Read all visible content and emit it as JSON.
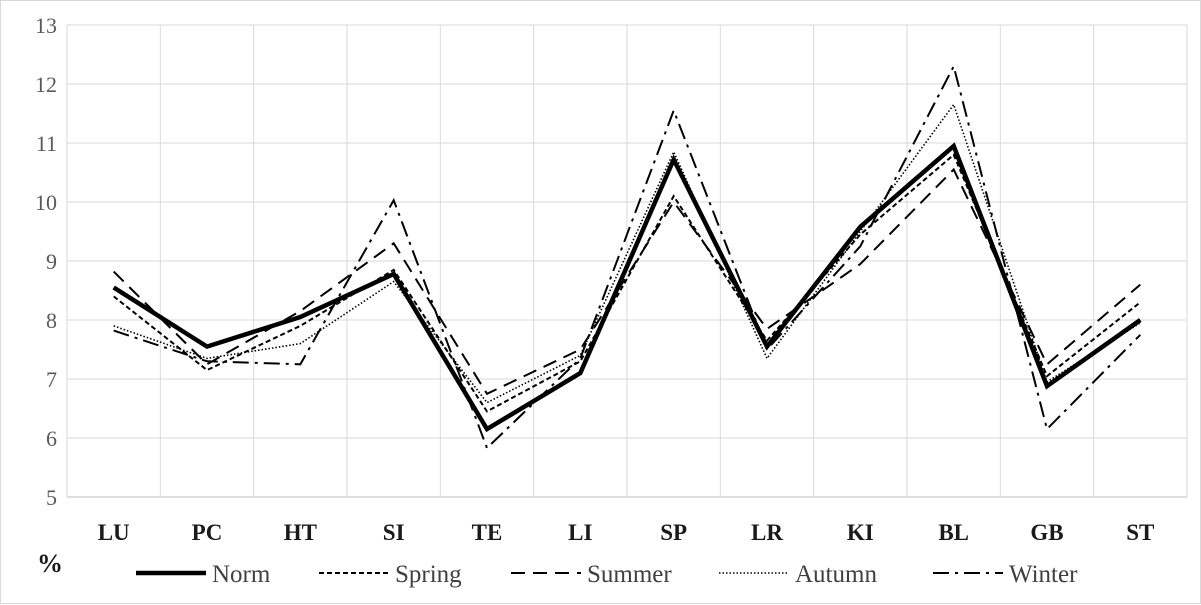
{
  "chart_data": {
    "type": "line",
    "title": "",
    "xlabel": "",
    "ylabel": "%",
    "ylim": [
      5,
      13
    ],
    "yticks": [
      5,
      6,
      7,
      8,
      9,
      10,
      11,
      12,
      13
    ],
    "grid": true,
    "legend_position": "bottom",
    "categories": [
      "LU",
      "PC",
      "HT",
      "SI",
      "TE",
      "LI",
      "SP",
      "LR",
      "KI",
      "BL",
      "GB",
      "ST"
    ],
    "series": [
      {
        "name": "Norm",
        "style": "solid-thick",
        "color": "#000000",
        "values": [
          8.55,
          7.55,
          8.05,
          8.78,
          6.15,
          7.1,
          10.72,
          7.55,
          9.58,
          10.95,
          6.88,
          8.0
        ]
      },
      {
        "name": "Spring",
        "style": "short-dash",
        "color": "#000000",
        "values": [
          8.4,
          7.15,
          7.9,
          8.85,
          6.45,
          7.3,
          10.1,
          7.65,
          9.45,
          10.8,
          7.05,
          8.3
        ]
      },
      {
        "name": "Summer",
        "style": "long-dash",
        "color": "#000000",
        "values": [
          8.82,
          7.25,
          8.15,
          9.3,
          6.75,
          7.5,
          10.0,
          7.85,
          8.95,
          10.55,
          7.25,
          8.6
        ]
      },
      {
        "name": "Autumn",
        "style": "dotted",
        "color": "#000000",
        "values": [
          7.9,
          7.35,
          7.6,
          8.65,
          6.6,
          7.4,
          10.85,
          7.35,
          9.5,
          11.65,
          6.95,
          7.95
        ]
      },
      {
        "name": "Winter",
        "style": "dash-dot",
        "color": "#000000",
        "values": [
          7.82,
          7.3,
          7.25,
          10.03,
          5.83,
          7.35,
          11.55,
          7.5,
          9.25,
          12.3,
          6.15,
          7.75
        ]
      }
    ]
  }
}
